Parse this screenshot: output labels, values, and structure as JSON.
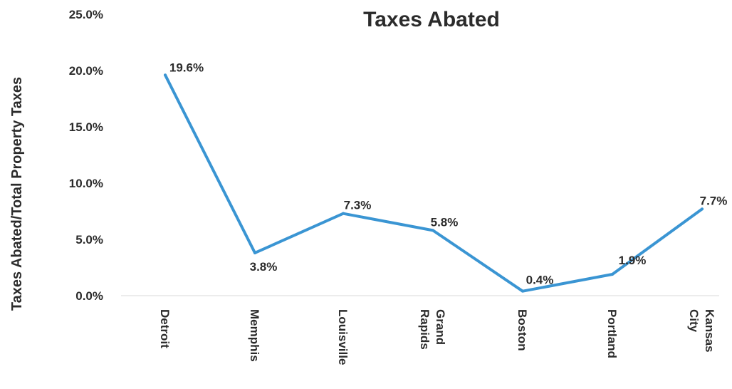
{
  "chart_data": {
    "type": "line",
    "title": "Taxes Abated",
    "xlabel": "",
    "ylabel": "Taxes Abated/Total Property Taxes",
    "categories": [
      [
        "Detroit"
      ],
      [
        "Memphis"
      ],
      [
        "Louisville"
      ],
      [
        "Grand",
        "Rapids"
      ],
      [
        "Boston"
      ],
      [
        "Portland"
      ],
      [
        "Kansas",
        "City"
      ]
    ],
    "series": [
      {
        "values": [
          19.6,
          3.8,
          7.3,
          5.8,
          0.4,
          1.9,
          7.7
        ],
        "data_labels": [
          "19.6%",
          "3.8%",
          "7.3%",
          "5.8%",
          "0.4%",
          "1.9%",
          "7.7%"
        ],
        "color": "#3a95d3"
      }
    ],
    "ylim": [
      0,
      25
    ],
    "yticks": [
      0,
      5,
      10,
      15,
      20,
      25
    ],
    "ytick_labels": [
      "0.0%",
      "5.0%",
      "10.0%",
      "15.0%",
      "20.0%",
      "25.0%"
    ],
    "grid": false,
    "legend": "none",
    "axis_color": "#e6e6e6"
  }
}
